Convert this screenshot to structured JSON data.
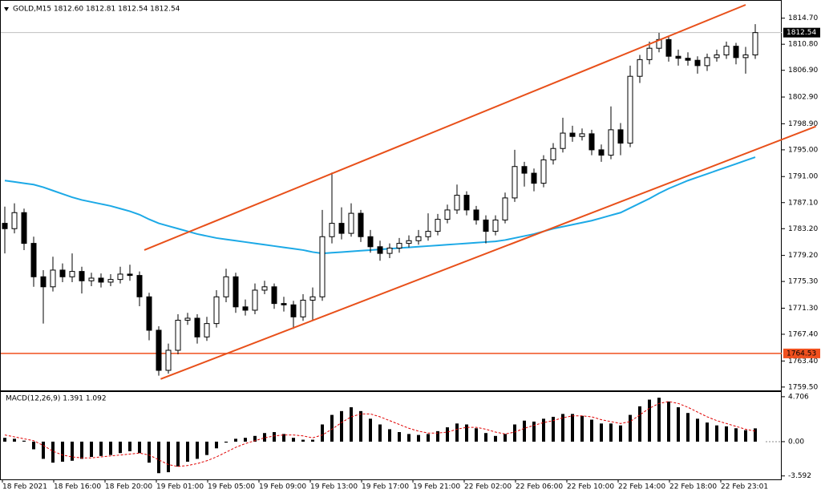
{
  "chart_data": {
    "type": "candlestick",
    "header": "GOLD,M15  1812.60 1812.81 1812.54 1812.54",
    "candles": [
      [
        1784,
        1786.5,
        1779.5,
        1783.2
      ],
      [
        1783.2,
        1787,
        1782.5,
        1785.6
      ],
      [
        1785.6,
        1786.2,
        1780,
        1781
      ],
      [
        1781,
        1782,
        1774.5,
        1776
      ],
      [
        1776,
        1777,
        1769,
        1774.5
      ],
      [
        1774.5,
        1779,
        1773.8,
        1777
      ],
      [
        1777,
        1778,
        1775.2,
        1776
      ],
      [
        1776,
        1779.5,
        1775.2,
        1776.8
      ],
      [
        1776.8,
        1777.5,
        1773.5,
        1775.4
      ],
      [
        1775.4,
        1776.6,
        1774.6,
        1775.8
      ],
      [
        1775.8,
        1776.5,
        1774.4,
        1775.2
      ],
      [
        1775.2,
        1776.4,
        1774.6,
        1775.6
      ],
      [
        1775.6,
        1777.5,
        1775,
        1776.4
      ],
      [
        1776.4,
        1777.8,
        1775.4,
        1776.2
      ],
      [
        1776.2,
        1776.8,
        1771.6,
        1773
      ],
      [
        1773,
        1773.6,
        1766.5,
        1768
      ],
      [
        1768,
        1768.6,
        1761.2,
        1762
      ],
      [
        1762,
        1766,
        1761.5,
        1765
      ],
      [
        1765,
        1770.4,
        1764.4,
        1769.5
      ],
      [
        1769.5,
        1770.6,
        1768.8,
        1769.8
      ],
      [
        1769.8,
        1770.4,
        1766,
        1767
      ],
      [
        1767,
        1770,
        1766.4,
        1769
      ],
      [
        1769,
        1774,
        1768.4,
        1773
      ],
      [
        1773,
        1777.2,
        1772.2,
        1776
      ],
      [
        1776,
        1776.6,
        1770.6,
        1771.5
      ],
      [
        1771.5,
        1772.6,
        1770.2,
        1771
      ],
      [
        1771,
        1775,
        1770.4,
        1774
      ],
      [
        1774,
        1775.4,
        1773.4,
        1774.5
      ],
      [
        1774.5,
        1775,
        1771.2,
        1772
      ],
      [
        1772,
        1773,
        1770.8,
        1771.8
      ],
      [
        1771.8,
        1772.4,
        1768.2,
        1770
      ],
      [
        1770,
        1773.4,
        1769.4,
        1772.5
      ],
      [
        1772.5,
        1774.4,
        1769.4,
        1773
      ],
      [
        1773,
        1786,
        1772.4,
        1782
      ],
      [
        1782,
        1791.6,
        1781,
        1784
      ],
      [
        1784,
        1786.4,
        1781.6,
        1782.5
      ],
      [
        1782.5,
        1787,
        1782,
        1785.5
      ],
      [
        1785.5,
        1786,
        1781.2,
        1782
      ],
      [
        1782,
        1783,
        1779.6,
        1780.5
      ],
      [
        1780.5,
        1781.4,
        1778.4,
        1779.5
      ],
      [
        1779.5,
        1781,
        1778.8,
        1780.3
      ],
      [
        1780.3,
        1781.8,
        1779.6,
        1781
      ],
      [
        1781,
        1782.2,
        1780.4,
        1781.4
      ],
      [
        1781.4,
        1783,
        1780.8,
        1782
      ],
      [
        1782,
        1785.5,
        1781.4,
        1782.8
      ],
      [
        1782.8,
        1785.4,
        1782.2,
        1784.6
      ],
      [
        1784.6,
        1786.8,
        1784,
        1786
      ],
      [
        1786,
        1789.8,
        1785.4,
        1788.2
      ],
      [
        1788.2,
        1788.8,
        1785.2,
        1786
      ],
      [
        1786,
        1786.6,
        1783.8,
        1784.5
      ],
      [
        1784.5,
        1785.2,
        1781,
        1782.8
      ],
      [
        1782.8,
        1785.2,
        1782.2,
        1784.5
      ],
      [
        1784.5,
        1788.6,
        1784,
        1787.8
      ],
      [
        1787.8,
        1795,
        1787.2,
        1792.5
      ],
      [
        1792.5,
        1793.2,
        1789.5,
        1791.5
      ],
      [
        1791.5,
        1792.2,
        1788.8,
        1790
      ],
      [
        1790,
        1794.2,
        1789.4,
        1793.5
      ],
      [
        1793.5,
        1796,
        1792.8,
        1795.2
      ],
      [
        1795.2,
        1799.8,
        1794.6,
        1797.5
      ],
      [
        1797.5,
        1798.6,
        1796.2,
        1797
      ],
      [
        1797,
        1798.2,
        1796.4,
        1797.4
      ],
      [
        1797.4,
        1798,
        1794.2,
        1795
      ],
      [
        1795,
        1795.8,
        1793.2,
        1794.2
      ],
      [
        1794.2,
        1801.5,
        1793.6,
        1798
      ],
      [
        1798,
        1799,
        1794.2,
        1796
      ],
      [
        1796,
        1807.6,
        1795.4,
        1806
      ],
      [
        1806,
        1809.2,
        1805,
        1808.5
      ],
      [
        1808.5,
        1811.2,
        1807.8,
        1810.2
      ],
      [
        1810.2,
        1812.5,
        1809.6,
        1811.5
      ],
      [
        1811.5,
        1812,
        1808.2,
        1809
      ],
      [
        1809,
        1810,
        1807.6,
        1808.7
      ],
      [
        1808.7,
        1809.6,
        1807.6,
        1808.4
      ],
      [
        1808.4,
        1809,
        1806.4,
        1807.6
      ],
      [
        1807.6,
        1809.4,
        1806.8,
        1808.8
      ],
      [
        1808.8,
        1810,
        1808.2,
        1809.2
      ],
      [
        1809.2,
        1811.2,
        1808.6,
        1810.5
      ],
      [
        1810.5,
        1811,
        1807.8,
        1808.8
      ],
      [
        1808.8,
        1810.4,
        1806.4,
        1809.2
      ],
      [
        1809.2,
        1813.8,
        1808.6,
        1812.54
      ]
    ],
    "ma": {
      "color": "#1ca9e6",
      "values": [
        1790.4,
        1790.2,
        1790,
        1789.8,
        1789.4,
        1788.9,
        1788.4,
        1787.9,
        1787.5,
        1787.2,
        1786.9,
        1786.6,
        1786.2,
        1785.8,
        1785.3,
        1784.6,
        1784,
        1783.6,
        1783.2,
        1782.8,
        1782.4,
        1782.1,
        1781.8,
        1781.6,
        1781.4,
        1781.2,
        1781,
        1780.8,
        1780.6,
        1780.4,
        1780.2,
        1780,
        1779.7,
        1779.5,
        1779.6,
        1779.7,
        1779.8,
        1779.9,
        1780,
        1780.1,
        1780.2,
        1780.3,
        1780.4,
        1780.5,
        1780.6,
        1780.7,
        1780.8,
        1780.9,
        1781,
        1781.1,
        1781.2,
        1781.3,
        1781.5,
        1781.8,
        1782.1,
        1782.4,
        1782.8,
        1783.2,
        1783.5,
        1783.8,
        1784.1,
        1784.4,
        1784.8,
        1785.2,
        1785.6,
        1786.3,
        1787,
        1787.7,
        1788.5,
        1789.2,
        1789.8,
        1790.4,
        1790.9,
        1791.4,
        1791.9,
        1792.4,
        1792.9,
        1793.4,
        1793.9
      ]
    },
    "ylim": [
      1759.0,
      1817.3
    ],
    "yticks": [
      {
        "value": 1814.7,
        "label": "1814.70"
      },
      {
        "value": 1810.8,
        "label": "1810.80"
      },
      {
        "value": 1806.9,
        "label": "1806.90"
      },
      {
        "value": 1802.9,
        "label": "1802.90"
      },
      {
        "value": 1798.9,
        "label": "1798.90"
      },
      {
        "value": 1795.0,
        "label": "1795.00"
      },
      {
        "value": 1791.0,
        "label": "1791.00"
      },
      {
        "value": 1787.1,
        "label": "1787.10"
      },
      {
        "value": 1783.2,
        "label": "1783.20"
      },
      {
        "value": 1779.2,
        "label": "1779.20"
      },
      {
        "value": 1775.3,
        "label": "1775.30"
      },
      {
        "value": 1771.3,
        "label": "1771.30"
      },
      {
        "value": 1767.4,
        "label": "1767.40"
      },
      {
        "value": 1763.4,
        "label": "1763.40"
      },
      {
        "value": 1759.5,
        "label": "1759.50"
      }
    ],
    "current_price": {
      "value": 1812.54,
      "label": "1812.54"
    },
    "hline": {
      "value": 1764.53,
      "label": "1764.53",
      "color": "#f0501e"
    },
    "channel": {
      "color": "#e8501a",
      "lines": [
        [
          [
            14.5,
            1780.0
          ],
          [
            77,
            1816.7
          ]
        ],
        [
          [
            16.2,
            1760.7
          ],
          [
            84.3,
            1798.5
          ]
        ]
      ]
    },
    "x_labels": [
      "18 Feb 2021",
      "18 Feb 16:00",
      "18 Feb 20:00",
      "19 Feb 01:00",
      "19 Feb 05:00",
      "19 Feb 09:00",
      "19 Feb 13:00",
      "19 Feb 17:00",
      "19 Feb 21:00",
      "22 Feb 02:00",
      "22 Feb 06:00",
      "22 Feb 10:00",
      "22 Feb 14:00",
      "22 Feb 18:00",
      "22 Feb 23:01"
    ],
    "macd": {
      "label": "MACD(12,26,9) 1.391 1.092",
      "histogram": [
        0.4,
        0.3,
        0.1,
        -0.8,
        -1.8,
        -2.2,
        -2.1,
        -2,
        -1.8,
        -1.6,
        -1.5,
        -1.4,
        -1.2,
        -1,
        -1.2,
        -2.2,
        -3.3,
        -3.2,
        -2.6,
        -2.1,
        -1.8,
        -1.4,
        -0.7,
        -0.1,
        0.3,
        0.4,
        0.6,
        0.9,
        1,
        0.8,
        0.4,
        0.2,
        0.2,
        1.8,
        2.8,
        3.2,
        3.6,
        3.2,
        2.4,
        1.8,
        1.3,
        1,
        0.8,
        0.7,
        0.8,
        1.1,
        1.5,
        1.9,
        1.8,
        1.4,
        0.9,
        0.6,
        0.8,
        1.8,
        2.2,
        2.1,
        2.4,
        2.6,
        2.9,
        2.9,
        2.7,
        2.3,
        1.9,
        1.9,
        1.7,
        2.8,
        3.7,
        4.4,
        4.6,
        4.2,
        3.6,
        3,
        2.4,
        2,
        1.7,
        1.6,
        1.4,
        1.2,
        1.391
      ],
      "signal": {
        "color": "#e00000",
        "values": [
          0.7,
          0.5,
          0.3,
          0.1,
          -0.4,
          -1,
          -1.4,
          -1.6,
          -1.7,
          -1.7,
          -1.6,
          -1.5,
          -1.4,
          -1.3,
          -1.2,
          -1.4,
          -1.9,
          -2.4,
          -2.6,
          -2.5,
          -2.3,
          -2,
          -1.6,
          -1.1,
          -0.6,
          -0.2,
          0.1,
          0.4,
          0.6,
          0.7,
          0.7,
          0.6,
          0.4,
          0.7,
          1.3,
          2,
          2.6,
          2.9,
          2.9,
          2.6,
          2.2,
          1.8,
          1.4,
          1.1,
          0.9,
          0.9,
          1,
          1.3,
          1.5,
          1.5,
          1.3,
          1,
          0.8,
          1,
          1.4,
          1.7,
          2,
          2.2,
          2.5,
          2.7,
          2.7,
          2.6,
          2.3,
          2.1,
          1.9,
          2.1,
          2.8,
          3.5,
          4,
          4.2,
          4,
          3.6,
          3.1,
          2.6,
          2.2,
          1.9,
          1.6,
          1.3,
          1.092
        ]
      },
      "ylim": [
        -3.95,
        5.2
      ],
      "yticks": [
        4.706,
        {
          "value": 0,
          "label": "0.00"
        },
        -3.592
      ]
    }
  }
}
